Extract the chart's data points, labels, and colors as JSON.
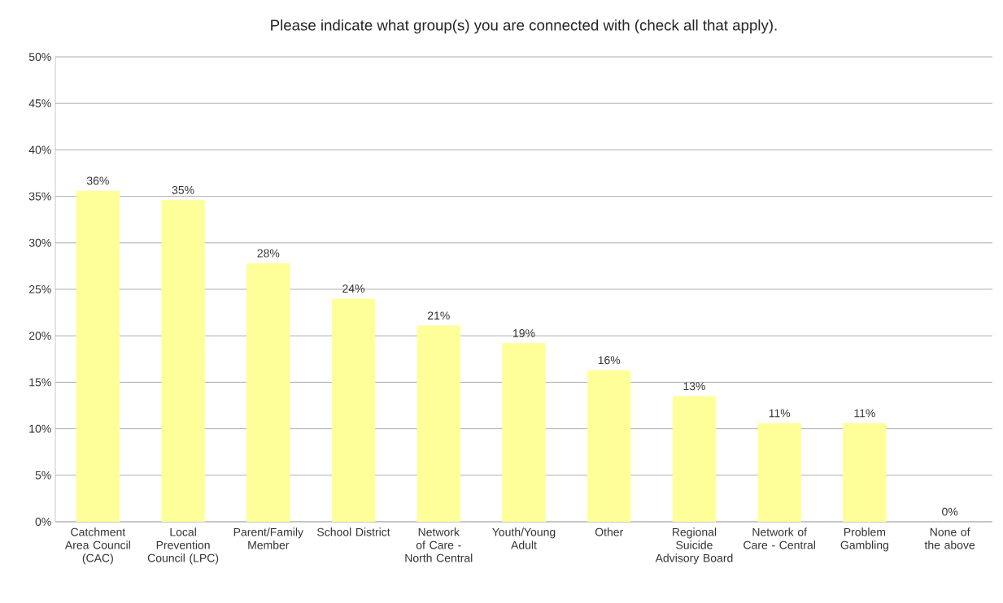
{
  "chart_data": {
    "type": "bar",
    "title": "Please indicate what group(s) you are connected with (check all that apply).",
    "categories": [
      "Catchment Area Council (CAC)",
      "Local Prevention Council (LPC)",
      "Parent/Family Member",
      "School District",
      "Network of Care - North Central",
      "Youth/Young Adult",
      "Other",
      "Regional Suicide Advisory Board",
      "Network of Care - Central",
      "Problem Gambling",
      "None of the above"
    ],
    "values": [
      35.6,
      34.6,
      27.8,
      24.0,
      21.1,
      19.2,
      16.3,
      13.5,
      10.6,
      10.6,
      0
    ],
    "value_labels": [
      "36%",
      "35%",
      "28%",
      "24%",
      "21%",
      "19%",
      "16%",
      "13%",
      "11%",
      "11%",
      "0%"
    ],
    "color": "#ffff99",
    "ylim": [
      0,
      50
    ],
    "yticks": [
      {
        "value": 0,
        "label": "0%"
      },
      {
        "value": 5,
        "label": "5%"
      },
      {
        "value": 10,
        "label": "10%"
      },
      {
        "value": 15,
        "label": "15%"
      },
      {
        "value": 20,
        "label": "20%"
      },
      {
        "value": 25,
        "label": "25%"
      },
      {
        "value": 30,
        "label": "30%"
      },
      {
        "value": 35,
        "label": "35%"
      },
      {
        "value": 40,
        "label": "40%"
      },
      {
        "value": 45,
        "label": "45%"
      },
      {
        "value": 50,
        "label": "50%"
      }
    ],
    "grid": "y"
  }
}
